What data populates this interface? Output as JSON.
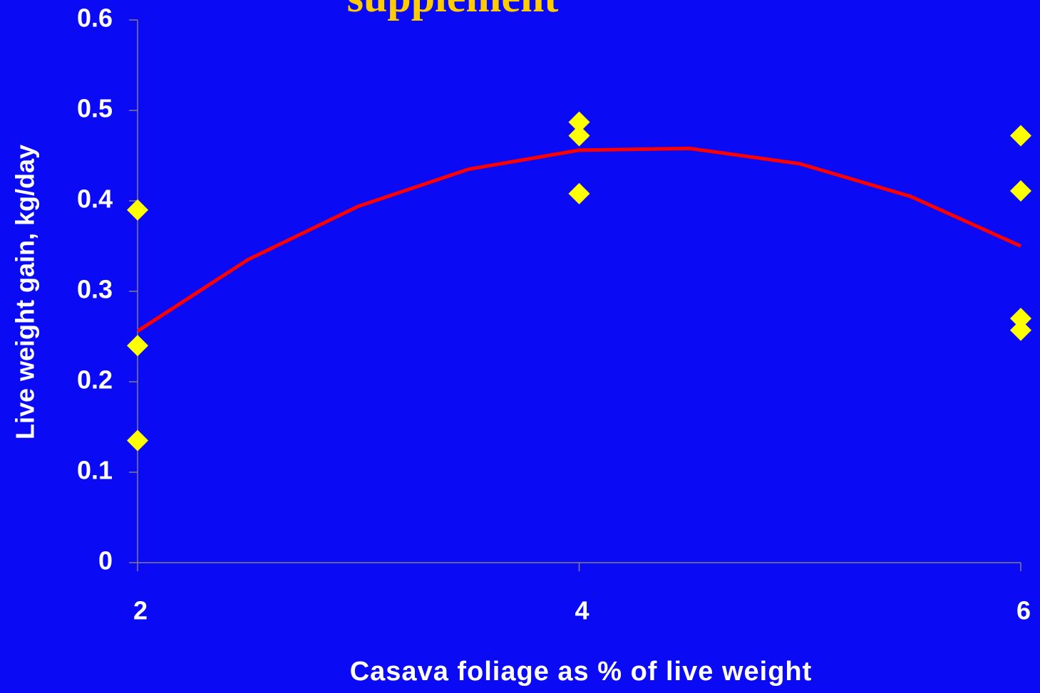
{
  "chart_data": {
    "type": "scatter",
    "title": "supplement",
    "xlabel": "Casava foliage as % of live weight",
    "ylabel": "Live weight gain, kg/day",
    "xlim": [
      2,
      6
    ],
    "xticks": [
      2,
      4,
      6
    ],
    "ylim": [
      0,
      0.6
    ],
    "yticks": [
      0,
      0.1,
      0.2,
      0.3,
      0.4,
      0.5,
      0.6
    ],
    "background": "#0a0af5",
    "series": [
      {
        "type": "scatter",
        "color": "#ffff00",
        "x": [
          2,
          2,
          2,
          4,
          4,
          4,
          6,
          6,
          6,
          6
        ],
        "values": [
          0.39,
          0.24,
          0.135,
          0.487,
          0.472,
          0.408,
          0.472,
          0.411,
          0.27,
          0.257
        ]
      },
      {
        "type": "line",
        "color": "#ff0000",
        "x": [
          2,
          2.5,
          3,
          3.5,
          4,
          4.5,
          5,
          5.5,
          6
        ],
        "values": [
          0.256,
          0.335,
          0.394,
          0.435,
          0.456,
          0.458,
          0.441,
          0.405,
          0.35
        ]
      }
    ]
  }
}
